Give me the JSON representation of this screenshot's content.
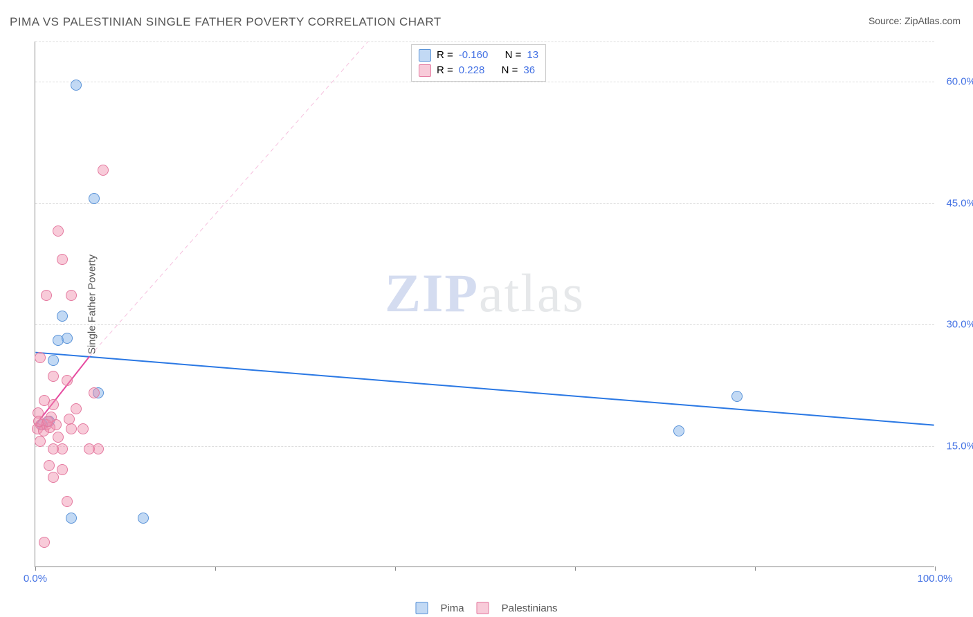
{
  "title": "PIMA VS PALESTINIAN SINGLE FATHER POVERTY CORRELATION CHART",
  "source_label": "Source: ZipAtlas.com",
  "ylabel": "Single Father Poverty",
  "watermark": {
    "zip": "ZIP",
    "rest": "atlas"
  },
  "chart": {
    "type": "scatter",
    "xlim": [
      0,
      100
    ],
    "ylim": [
      0,
      65
    ],
    "xticks": [
      0,
      20,
      40,
      60,
      80,
      100
    ],
    "xtick_labels": {
      "0": "0.0%",
      "100": "100.0%"
    },
    "yticks": [
      15,
      30,
      45,
      60
    ],
    "ytick_labels": [
      "15.0%",
      "30.0%",
      "45.0%",
      "60.0%"
    ],
    "grid_color": "#dddddd",
    "axis_color": "#888888",
    "background_color": "#ffffff",
    "label_fontsize": 15,
    "title_fontsize": 17,
    "tick_color": "#4472e4",
    "point_radius": 8,
    "series": [
      {
        "name": "Pima",
        "fill": "rgba(120,170,230,0.45)",
        "stroke": "#5a93d8",
        "r_value": "-0.160",
        "n_value": "13",
        "trend": {
          "x1": 0,
          "y1": 26.5,
          "x2": 100,
          "y2": 17.5,
          "color": "#2a78e4",
          "width": 2,
          "dash": "none"
        },
        "points": [
          {
            "x": 4.5,
            "y": 59.5
          },
          {
            "x": 6.5,
            "y": 45.5
          },
          {
            "x": 3.0,
            "y": 31.0
          },
          {
            "x": 2.5,
            "y": 28.0
          },
          {
            "x": 3.5,
            "y": 28.2
          },
          {
            "x": 7.0,
            "y": 21.5
          },
          {
            "x": 78.0,
            "y": 21.0
          },
          {
            "x": 71.5,
            "y": 16.8
          },
          {
            "x": 4.0,
            "y": 6.0
          },
          {
            "x": 12.0,
            "y": 6.0
          },
          {
            "x": 1.5,
            "y": 18.0
          },
          {
            "x": 0.8,
            "y": 17.5
          },
          {
            "x": 2.0,
            "y": 25.5
          }
        ]
      },
      {
        "name": "Palestinians",
        "fill": "rgba(240,140,170,0.45)",
        "stroke": "#e47aa0",
        "r_value": "0.228",
        "n_value": "36",
        "trend_solid": {
          "x1": 0,
          "y1": 17.5,
          "x2": 6,
          "y2": 26.0,
          "color": "#e64aa0",
          "width": 2
        },
        "trend_dashed": {
          "x1": 6,
          "y1": 26.0,
          "x2": 37,
          "y2": 65.0,
          "color": "rgba(230,74,160,0.35)",
          "width": 1,
          "dash": "6,5"
        },
        "points": [
          {
            "x": 7.5,
            "y": 49.0
          },
          {
            "x": 2.5,
            "y": 41.5
          },
          {
            "x": 3.0,
            "y": 38.0
          },
          {
            "x": 1.2,
            "y": 33.5
          },
          {
            "x": 4.0,
            "y": 33.5
          },
          {
            "x": 0.5,
            "y": 25.8
          },
          {
            "x": 2.0,
            "y": 23.5
          },
          {
            "x": 3.5,
            "y": 23.0
          },
          {
            "x": 6.5,
            "y": 21.5
          },
          {
            "x": 1.0,
            "y": 20.5
          },
          {
            "x": 2.0,
            "y": 20.0
          },
          {
            "x": 4.5,
            "y": 19.5
          },
          {
            "x": 0.3,
            "y": 19.0
          },
          {
            "x": 1.8,
            "y": 18.5
          },
          {
            "x": 3.8,
            "y": 18.2
          },
          {
            "x": 0.6,
            "y": 17.5
          },
          {
            "x": 1.2,
            "y": 17.5
          },
          {
            "x": 2.3,
            "y": 17.5
          },
          {
            "x": 0.2,
            "y": 17.0
          },
          {
            "x": 0.9,
            "y": 16.8
          },
          {
            "x": 1.6,
            "y": 17.2
          },
          {
            "x": 4.0,
            "y": 17.0
          },
          {
            "x": 5.3,
            "y": 17.0
          },
          {
            "x": 0.5,
            "y": 15.5
          },
          {
            "x": 2.0,
            "y": 14.5
          },
          {
            "x": 3.0,
            "y": 14.5
          },
          {
            "x": 6.0,
            "y": 14.5
          },
          {
            "x": 7.0,
            "y": 14.5
          },
          {
            "x": 1.5,
            "y": 12.5
          },
          {
            "x": 3.0,
            "y": 12.0
          },
          {
            "x": 2.0,
            "y": 11.0
          },
          {
            "x": 3.5,
            "y": 8.0
          },
          {
            "x": 1.0,
            "y": 3.0
          },
          {
            "x": 0.4,
            "y": 18.0
          },
          {
            "x": 1.4,
            "y": 18.0
          },
          {
            "x": 2.5,
            "y": 16.0
          }
        ]
      }
    ],
    "legend": {
      "series1_label": "Pima",
      "series2_label": "Palestinians",
      "r_label": "R =",
      "n_label": "N ="
    }
  }
}
